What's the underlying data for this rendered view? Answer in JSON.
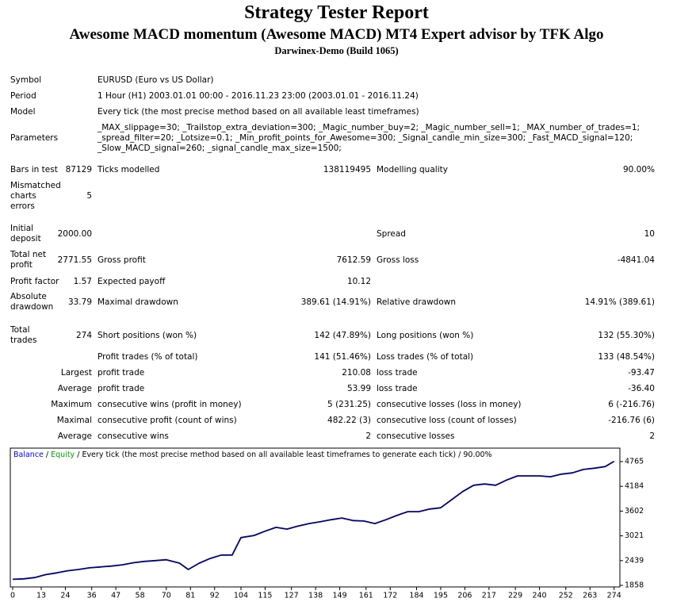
{
  "header": {
    "title": "Strategy Tester Report",
    "subtitle": "Awesome MACD momentum (Awesome MACD) MT4 Expert advisor by TFK Algo",
    "server": "Darwinex-Demo (Build 1065)"
  },
  "table": {
    "rows": [
      {
        "label": [
          "Symbol"
        ],
        "text": [
          "EURUSD (Euro vs US Dollar)"
        ]
      },
      {
        "label": [
          "Period"
        ],
        "text": [
          "1 Hour (H1) 2003.01.01 00:00 - 2016.11.23 23:00 (2003.01.01 - 2016.11.24)"
        ]
      },
      {
        "label": [
          "Model"
        ],
        "text": [
          "Every tick (the most precise method based on all available least timeframes)"
        ]
      },
      {
        "label": [
          "Parameters"
        ],
        "text": [
          "_MAX_slippage=30; _Trailstop_extra_deviation=300; _Magic_number_buy=2; _Magic_number_sell=1; _MAX_number_of_trades=1;",
          "_spread_filter=20; _Lotsize=0.1; _Min_profit_points_for_Awesome=300; _Signal_candle_min_size=300; _Fast_MACD_signal=120;",
          "_Slow_MACD_signal=260; _signal_candle_max_size=1500;"
        ]
      },
      {
        "label": [
          "Bars in test"
        ],
        "value": "87129",
        "label2": "Ticks modelled",
        "value2": "138119495",
        "label3": "Modelling quality",
        "value3": "90.00%"
      },
      {
        "label": [
          "Mismatched",
          "charts",
          "errors"
        ],
        "value": "5"
      },
      {
        "label": [
          "Initial",
          "deposit"
        ],
        "value": "2000.00",
        "label3": "Spread",
        "value3": "10"
      },
      {
        "label": [
          "Total net",
          "profit"
        ],
        "value": "2771.55",
        "label2": "Gross profit",
        "value2": "7612.59",
        "label3": "Gross loss",
        "value3": "-4841.04"
      },
      {
        "label": [
          "Profit factor"
        ],
        "value": "1.57",
        "label2": "Expected payoff",
        "value2": "10.12"
      },
      {
        "label": [
          "Absolute",
          "drawdown"
        ],
        "value": "33.79",
        "label2": "Maximal drawdown",
        "value2": "389.61 (14.91%)",
        "label3": "Relative drawdown",
        "value3": "14.91% (389.61)"
      },
      {
        "label": [
          "Total",
          "trades"
        ],
        "value": "274",
        "label2": "Short positions (won %)",
        "value2": "142 (47.89%)",
        "label3": "Long positions (won %)",
        "value3": "132 (55.30%)"
      },
      {
        "label2": "Profit trades (% of total)",
        "value2": "141 (51.46%)",
        "label3": "Loss trades (% of total)",
        "value3": "133 (48.54%)"
      },
      {
        "label": [
          "Largest"
        ],
        "label2": "profit trade",
        "value2": "210.08",
        "label3": "loss trade",
        "value3": "-93.47"
      },
      {
        "label": [
          "Average"
        ],
        "label2": "profit trade",
        "value2": "53.99",
        "label3": "loss trade",
        "value3": "-36.40"
      },
      {
        "label": [
          "Maximum"
        ],
        "label2": "consecutive wins (profit in money)",
        "value2": "5 (231.25)",
        "label3": "consecutive losses (loss in money)",
        "value3": "6 (-216.76)"
      },
      {
        "label": [
          "Maximal"
        ],
        "label2": "consecutive profit (count of wins)",
        "value2": "482.22 (3)",
        "label3": "consecutive loss (count of losses)",
        "value3": "-216.76 (6)"
      },
      {
        "label": [
          "Average"
        ],
        "label2": "consecutive wins",
        "value2": "2",
        "label3": "consecutive losses",
        "value3": "2"
      }
    ]
  },
  "chart_data": {
    "type": "line",
    "legend": [
      {
        "name": "Balance",
        "color": "#0000ff"
      },
      {
        "name": "Equity",
        "color": "#00a000"
      }
    ],
    "legend_separator": " / ",
    "legend_note": [
      "Every tick (the most precise method based on all available least timeframes to generate each tick)",
      "90.00%"
    ],
    "x": [
      0,
      5,
      10,
      15,
      20,
      25,
      30,
      35,
      40,
      45,
      50,
      55,
      60,
      65,
      70,
      76,
      80,
      85,
      90,
      95,
      100,
      104,
      110,
      115,
      120,
      125,
      130,
      135,
      140,
      145,
      150,
      155,
      160,
      165,
      170,
      175,
      180,
      185,
      190,
      195,
      200,
      205,
      210,
      215,
      220,
      225,
      230,
      235,
      240,
      245,
      250,
      255,
      260,
      265,
      270,
      274
    ],
    "series": [
      {
        "name": "Balance",
        "color": "#000080",
        "values": [
          2000,
          2010,
          2040,
          2110,
          2150,
          2200,
          2230,
          2270,
          2290,
          2310,
          2340,
          2390,
          2420,
          2440,
          2460,
          2380,
          2230,
          2380,
          2490,
          2570,
          2570,
          2980,
          3030,
          3130,
          3220,
          3180,
          3250,
          3310,
          3350,
          3400,
          3440,
          3380,
          3370,
          3310,
          3400,
          3500,
          3590,
          3590,
          3650,
          3680,
          3870,
          4060,
          4210,
          4240,
          4210,
          4330,
          4430,
          4430,
          4430,
          4410,
          4470,
          4500,
          4580,
          4610,
          4650,
          4771.55
        ]
      }
    ],
    "xlim": [
      0,
      277
    ],
    "ylim": [
      1858,
      4765
    ],
    "xticks": [
      0,
      13,
      24,
      36,
      47,
      58,
      70,
      81,
      92,
      104,
      115,
      127,
      138,
      149,
      161,
      172,
      184,
      195,
      206,
      217,
      229,
      240,
      252,
      263,
      274
    ],
    "yticks": [
      1858,
      2439,
      3021,
      3602,
      4184,
      4765
    ]
  }
}
